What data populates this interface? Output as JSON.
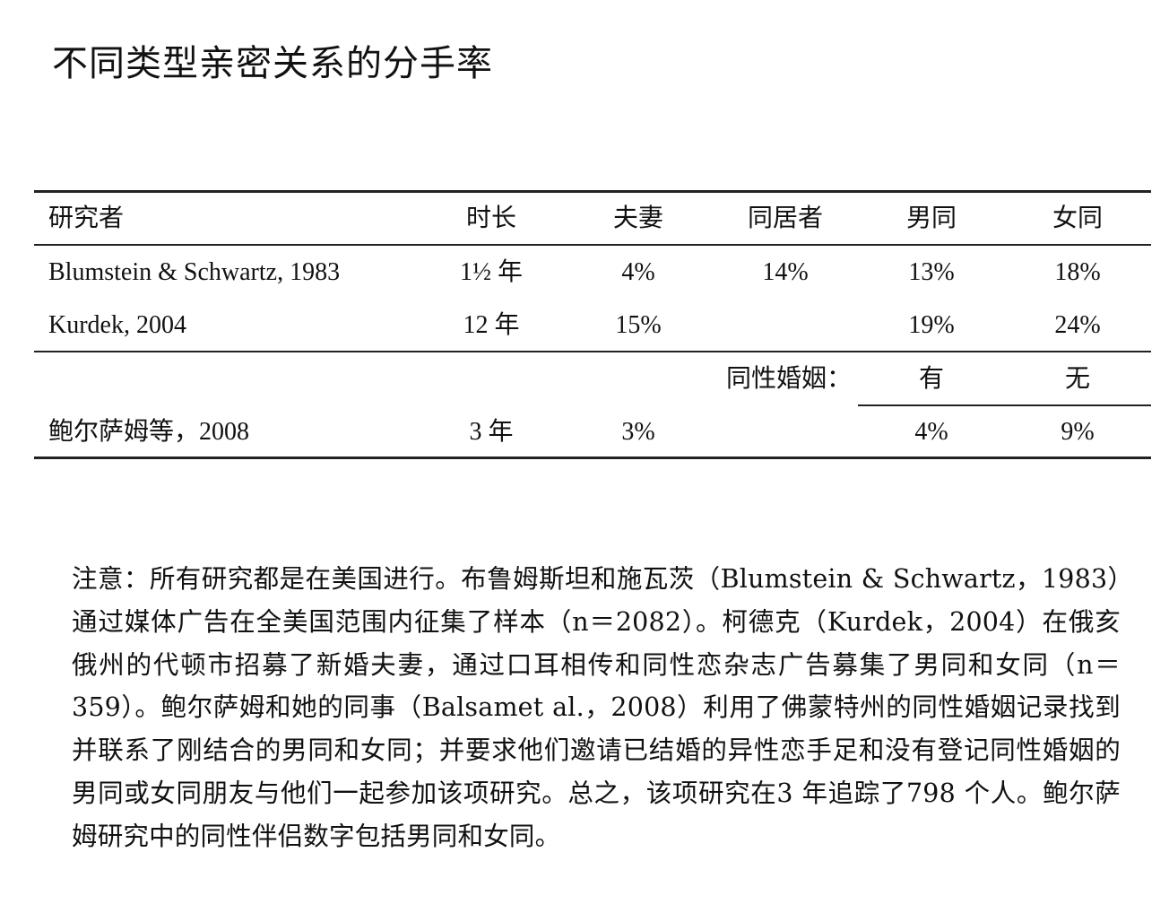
{
  "title": "不同类型亲密关系的分手率",
  "table": {
    "headers": [
      "研究者",
      "时长",
      "夫妻",
      "同居者",
      "男同",
      "女同"
    ],
    "rows": [
      [
        "Blumstein & Schwartz, 1983",
        "1½ 年",
        "4%",
        "14%",
        "13%",
        "18%"
      ],
      [
        "Kurdek, 2004",
        "12 年",
        "15%",
        "",
        "19%",
        "24%"
      ]
    ],
    "subheader": {
      "label": "同性婚姻：",
      "yes": "有",
      "no": "无"
    },
    "last_row": [
      "鲍尔萨姆等，2008",
      "3 年",
      "3%",
      "",
      "4%",
      "9%"
    ]
  },
  "note": "注意：所有研究都是在美国进行。布鲁姆斯坦和施瓦茨（Blumstein & Schwartz，1983）通过媒体广告在全美国范围内征集了样本（n＝2082）。柯德克（Kurdek，2004）在俄亥俄州的代顿市招募了新婚夫妻，通过口耳相传和同性恋杂志广告募集了男同和女同（n＝359）。鲍尔萨姆和她的同事（Balsamet al.，2008）利用了佛蒙特州的同性婚姻记录找到并联系了刚结合的男同和女同；并要求他们邀请已结婚的异性恋手足和没有登记同性婚姻的男同或女同朋友与他们一起参加该项研究。总之，该项研究在3 年追踪了798 个人。鲍尔萨姆研究中的同性伴侣数字包括男同和女同。"
}
